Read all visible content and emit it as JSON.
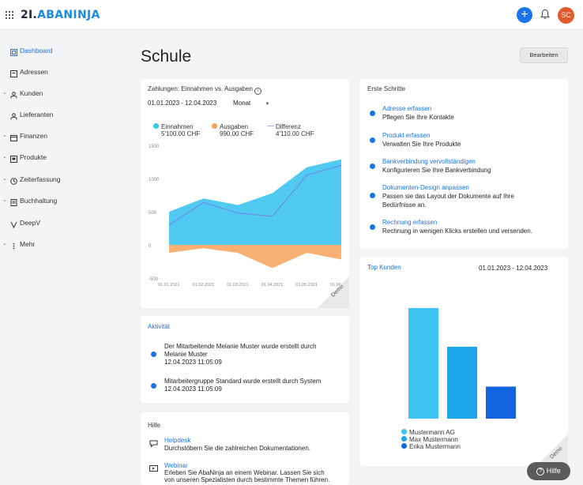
{
  "app": {
    "logo_prefix": "2I.",
    "logo_name": "ABANINJA",
    "avatar_initials": "SC",
    "plus_icon": "plus-icon",
    "bell_icon": "bell-icon"
  },
  "sidebar": {
    "items": [
      {
        "label": "Dashboard",
        "icon": "dashboard-icon",
        "active": true,
        "expandable": false
      },
      {
        "label": "Adressen",
        "icon": "address-book-icon",
        "active": false,
        "expandable": false
      },
      {
        "label": "Kunden",
        "icon": "customers-icon",
        "active": false,
        "expandable": true
      },
      {
        "label": "Lieferanten",
        "icon": "suppliers-icon",
        "active": false,
        "expandable": false
      },
      {
        "label": "Finanzen",
        "icon": "finance-icon",
        "active": false,
        "expandable": true
      },
      {
        "label": "Produkte",
        "icon": "products-icon",
        "active": false,
        "expandable": true
      },
      {
        "label": "Zeiterfassung",
        "icon": "clock-icon",
        "active": false,
        "expandable": true
      },
      {
        "label": "Buchhaltung",
        "icon": "accounting-icon",
        "active": false,
        "expandable": true
      },
      {
        "label": "DeepV",
        "icon": "deepv-icon",
        "active": false,
        "expandable": false
      },
      {
        "label": "Mehr",
        "icon": "more-icon",
        "active": false,
        "expandable": true
      }
    ]
  },
  "page": {
    "title": "Schule",
    "edit_label": "Bearbeiten"
  },
  "payments": {
    "title": "Zahlungen: Einnahmen vs. Ausgaben",
    "date_range": "01.01.2023 - 12.04.2023",
    "period": "Monat",
    "legend": [
      {
        "label": "Einnahmen",
        "value": "5'100.00 CHF",
        "color": "#3dc4f0"
      },
      {
        "label": "Ausgaben",
        "value": "990.00 CHF",
        "color": "#f7a25a"
      },
      {
        "label": "Differenz",
        "value": "4'110.00 CHF",
        "color": "#6a8ee8"
      }
    ],
    "demo": "Demo"
  },
  "chart_data": [
    {
      "type": "area",
      "categories": [
        "01.01.2021",
        "01.02.2021",
        "01.03.2021",
        "01.04.2021",
        "01.05.2021",
        "01.06."
      ],
      "yticks": [
        "1500",
        "1000",
        "500",
        "0",
        "-500"
      ],
      "ylim": [
        -500,
        1500
      ],
      "series": [
        {
          "name": "Einnahmen",
          "values": [
            500,
            700,
            600,
            780,
            1170,
            1290
          ]
        },
        {
          "name": "Ausgaben",
          "values": [
            -120,
            -50,
            -120,
            -350,
            -120,
            -220
          ]
        },
        {
          "name": "Differenz",
          "values": [
            300,
            640,
            480,
            430,
            1050,
            1200
          ]
        }
      ]
    },
    {
      "type": "bar",
      "categories": [
        "Mustermann AG",
        "Max Mustermann",
        "Erika Mustermann"
      ],
      "values": [
        100,
        65,
        29
      ],
      "colors": [
        "#3dc4f0",
        "#1ea6ea",
        "#1565e0"
      ]
    }
  ],
  "steps": {
    "title": "Erste Schritte",
    "items": [
      {
        "link": "Adresse erfassen",
        "desc": "Pflegen Sie Ihre Kontakte"
      },
      {
        "link": "Produkt erfassen",
        "desc": "Verwalten Sie Ihre Produkte"
      },
      {
        "link": "Bankverbindung vervollständigen",
        "desc": "Konfigurieren Sie Ihre Bankverbindung"
      },
      {
        "link": "Dokumenten-Design anpassen",
        "desc1": "Passen sie das Layout der Dokumente auf Ihre",
        "desc2": "Bedürfnisse an."
      },
      {
        "link": "Rechnung erfassen",
        "desc": "Rechnung in wenigen Klicks erstellen und versenden."
      }
    ]
  },
  "activity": {
    "title": "Aktivität",
    "items": [
      {
        "line1": "Der Mitarbeitende Melanie Muster wurde erstellt durch",
        "line2": "Melanie Muster",
        "time": "12.04.2023 11:05:09"
      },
      {
        "line1": "Mitarbeitergruppe Standard wurde erstellt durch System",
        "time": "12.04.2023 11:05:09"
      }
    ]
  },
  "top_customers": {
    "title": "Top Kunden",
    "date_range": "01.01.2023 - 12.04.2023",
    "legend": [
      "Mustermann AG",
      "Max Mustermann",
      "Erika Mustermann"
    ],
    "demo": "Demo"
  },
  "help_card": {
    "title": "Hilfe",
    "items": [
      {
        "link": "Helpdesk",
        "desc": "Durchstöbern Sie die zahlreichen Dokumentationen."
      },
      {
        "link": "Webinar",
        "desc1": "Erleben Sie AbaNinja an einem Webinar. Lassen Sie sich",
        "desc2": "von unseren Spezialisten durch bestimmte Themen führen."
      }
    ]
  },
  "help_button": {
    "label": "Hilfe"
  }
}
